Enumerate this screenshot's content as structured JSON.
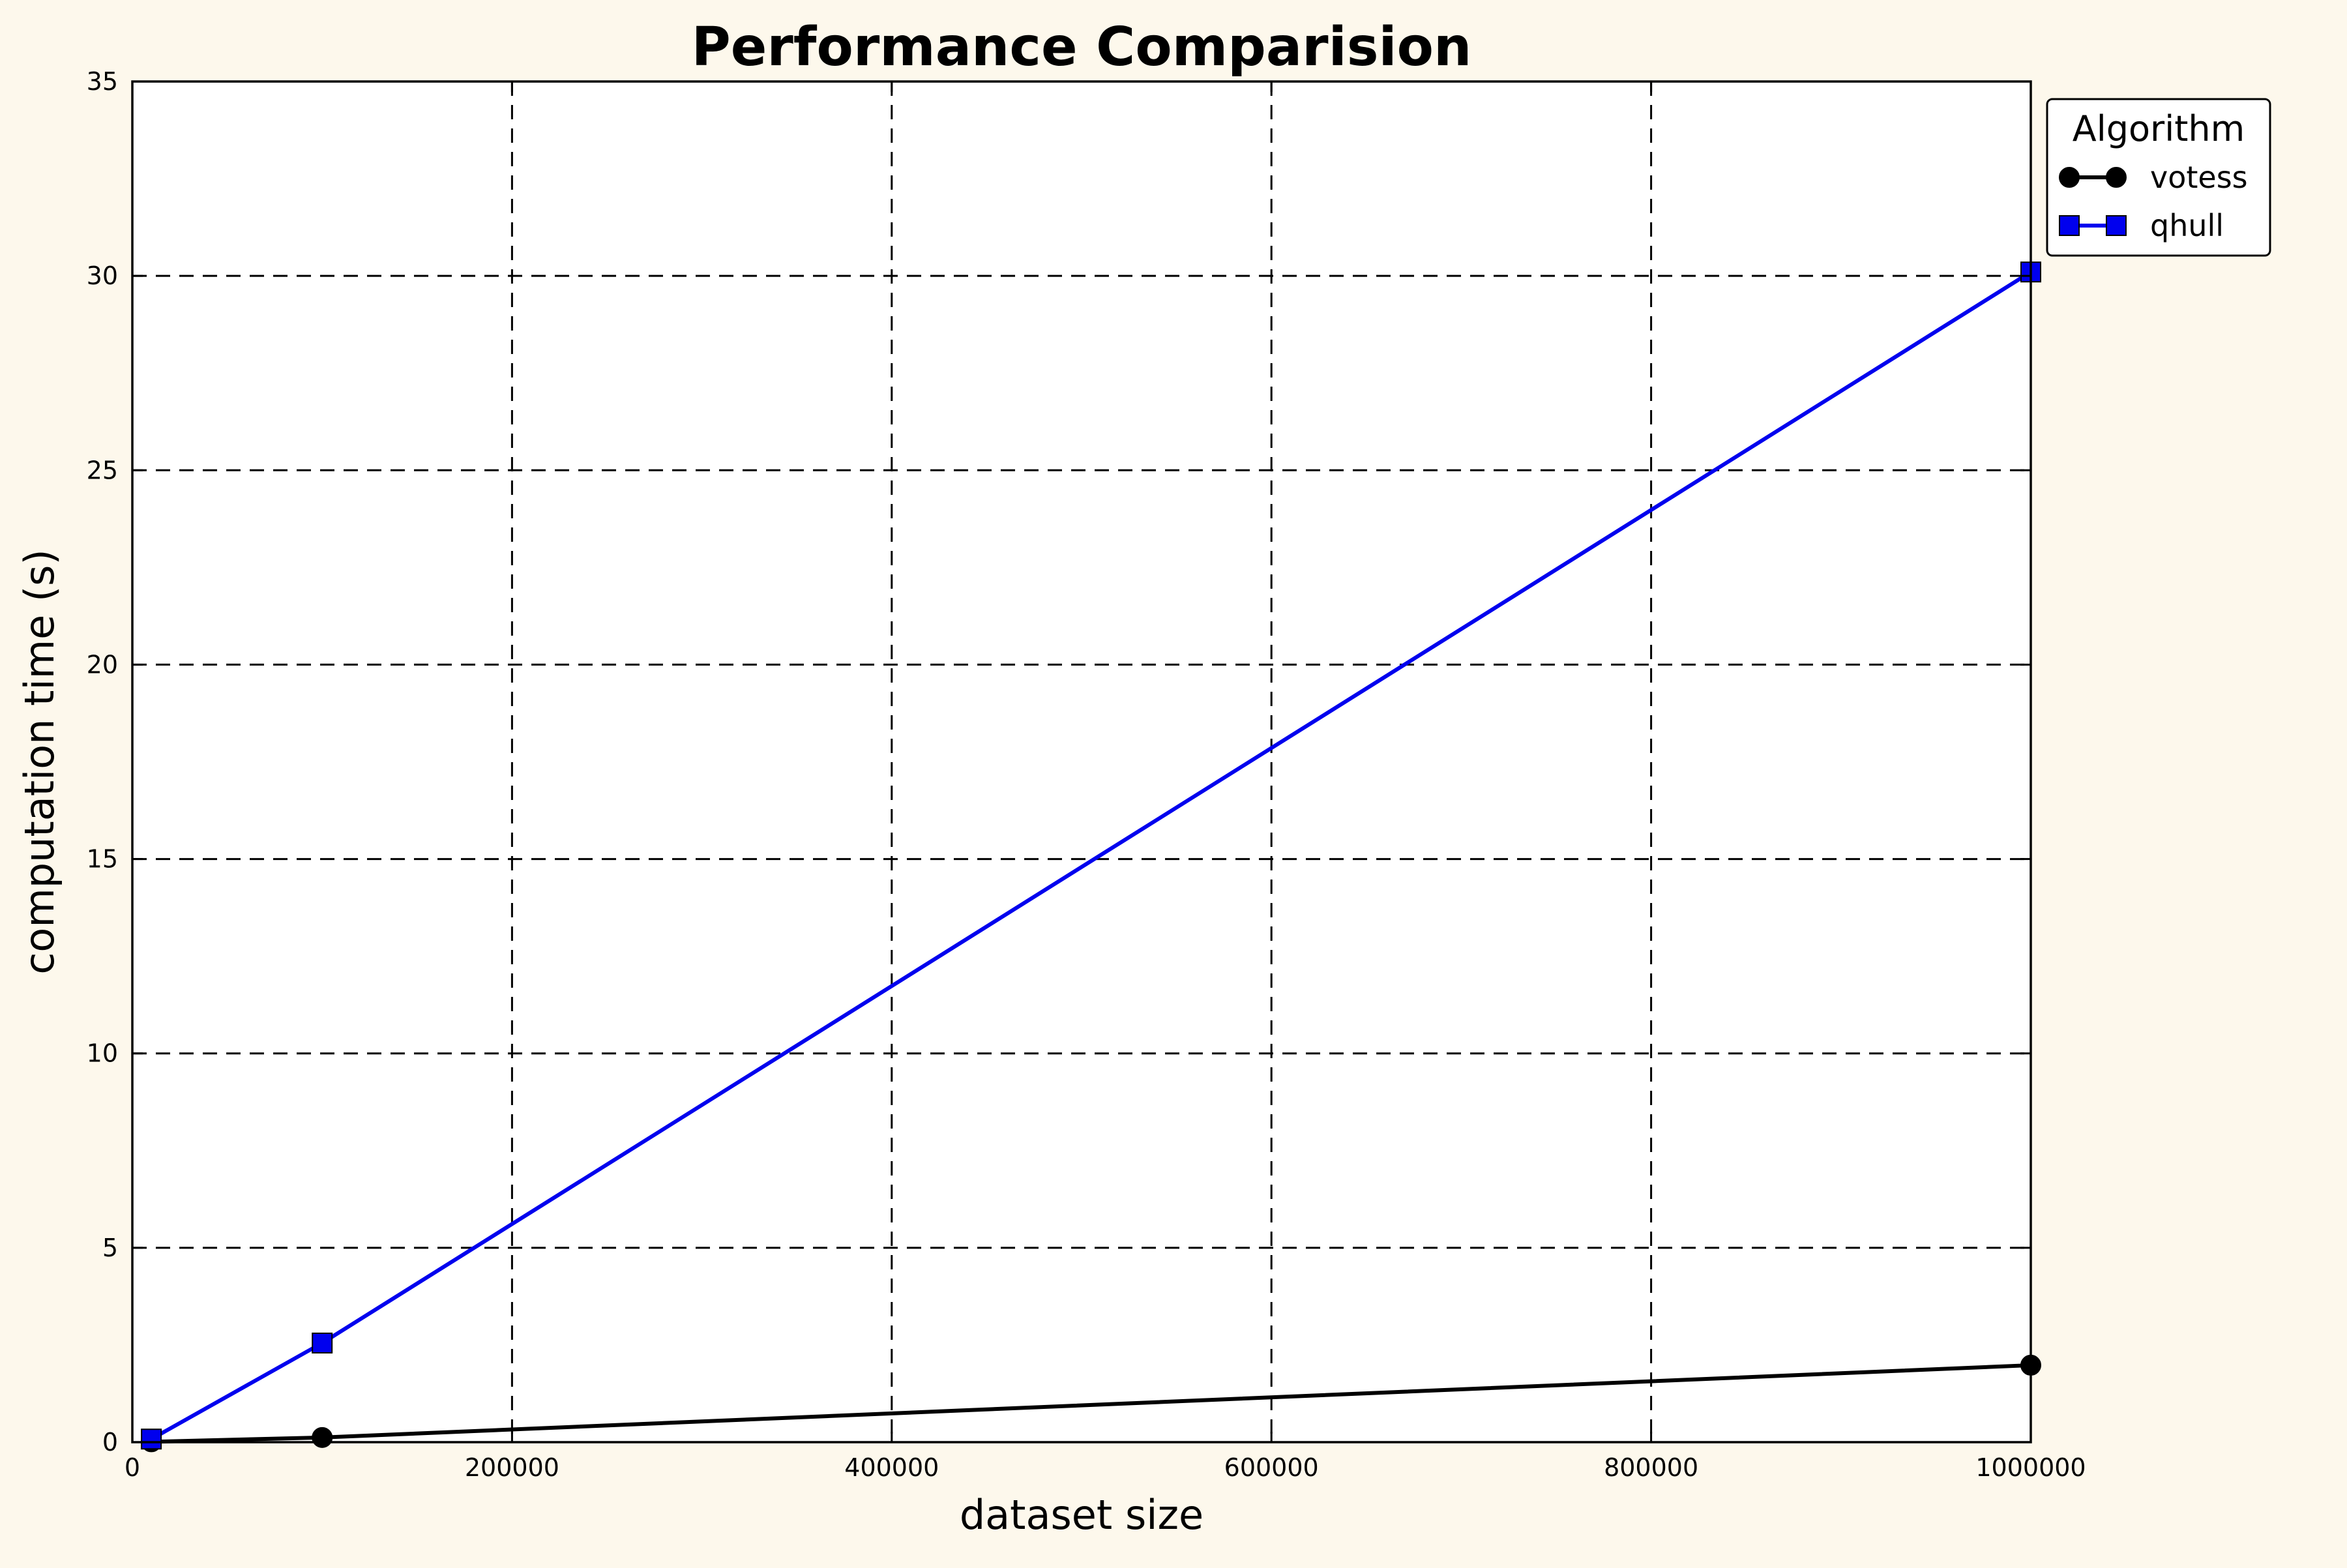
{
  "chart_data": {
    "type": "line",
    "title": "Performance Comparision",
    "xlabel": "dataset size",
    "ylabel": "computation time (s)",
    "xlim": [
      0,
      1000000
    ],
    "ylim": [
      0,
      35
    ],
    "x_ticks": [
      0,
      200000,
      400000,
      600000,
      800000,
      1000000
    ],
    "y_ticks": [
      0,
      5,
      10,
      15,
      20,
      25,
      30,
      35
    ],
    "x_tick_labels": [
      "0",
      "200000",
      "400000",
      "600000",
      "800000",
      "1000000"
    ],
    "y_tick_labels": [
      "0",
      "5",
      "10",
      "15",
      "20",
      "25",
      "30",
      "35"
    ],
    "grid": true,
    "grid_style": "dashed",
    "legend": {
      "title": "Algorithm",
      "placement": "outside-top-right"
    },
    "series": [
      {
        "name": "votess",
        "color": "#000000",
        "marker": "circle",
        "x": [
          10000,
          100000,
          1000000
        ],
        "y": [
          0.01,
          0.12,
          1.98
        ]
      },
      {
        "name": "qhull",
        "color": "#0000ee",
        "marker": "square",
        "x": [
          10000,
          100000,
          1000000
        ],
        "y": [
          0.08,
          2.55,
          30.1
        ]
      }
    ]
  }
}
